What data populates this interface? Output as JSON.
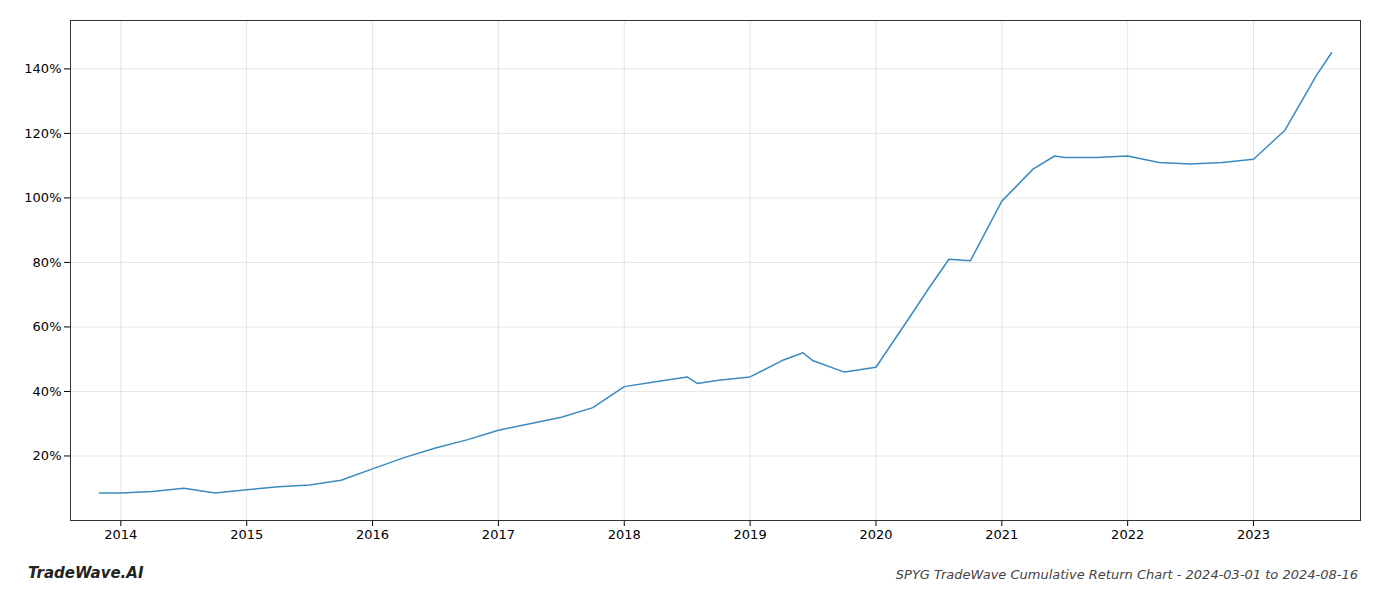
{
  "chart_data": {
    "type": "line",
    "title": "SPYG TradeWave Cumulative Return Chart - 2024-03-01 to 2024-08-16",
    "annotations": [
      "TradeWave.AI"
    ],
    "color": "#3a8abf",
    "x": [
      2013.83,
      2014.0,
      2014.25,
      2014.5,
      2014.75,
      2015.0,
      2015.25,
      2015.5,
      2015.75,
      2016.0,
      2016.25,
      2016.5,
      2016.75,
      2017.0,
      2017.25,
      2017.5,
      2017.75,
      2018.0,
      2018.25,
      2018.5,
      2018.58,
      2018.75,
      2019.0,
      2019.25,
      2019.42,
      2019.5,
      2019.75,
      2020.0,
      2020.25,
      2020.42,
      2020.58,
      2020.75,
      2021.0,
      2021.25,
      2021.42,
      2021.5,
      2021.75,
      2022.0,
      2022.25,
      2022.5,
      2022.75,
      2023.0,
      2023.25,
      2023.5,
      2023.62
    ],
    "values": [
      8.5,
      8.5,
      9.0,
      10.0,
      8.5,
      9.5,
      10.5,
      11.0,
      12.5,
      16.0,
      19.5,
      22.5,
      25.0,
      28.0,
      30.0,
      32.0,
      35.0,
      41.5,
      43.0,
      44.5,
      42.5,
      43.5,
      44.5,
      49.5,
      52.0,
      49.5,
      46.0,
      47.5,
      62.0,
      72.0,
      81.0,
      80.5,
      99.0,
      109.0,
      113.0,
      112.5,
      112.5,
      113.0,
      111.0,
      110.5,
      111.0,
      112.0,
      121.0,
      138.0,
      145.0
    ],
    "xlim": [
      2013.6,
      2023.85
    ],
    "ylim": [
      0,
      155
    ],
    "xticks": [
      2014,
      2015,
      2016,
      2017,
      2018,
      2019,
      2020,
      2021,
      2022,
      2023
    ],
    "yticks": [
      {
        "value": 20,
        "label": "20%"
      },
      {
        "value": 40,
        "label": "40%"
      },
      {
        "value": 60,
        "label": "60%"
      },
      {
        "value": 80,
        "label": "80%"
      },
      {
        "value": 100,
        "label": "100%"
      },
      {
        "value": 120,
        "label": "120%"
      },
      {
        "value": 140,
        "label": "140%"
      }
    ],
    "grid": true
  }
}
